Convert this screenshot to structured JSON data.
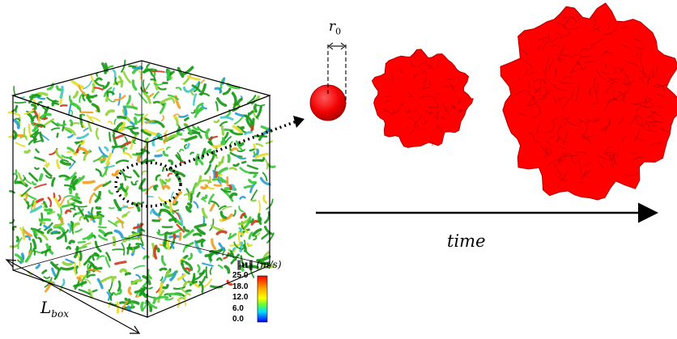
{
  "labels": {
    "r0_symbol": "r",
    "r0_subscript": "0",
    "time": "time",
    "lbox_symbol": "L",
    "lbox_subscript": "box",
    "colorbar_title_quantity": "‖u‖",
    "colorbar_title_unit": "(m/s)"
  },
  "colorbar": {
    "ticks": [
      "25.0",
      "18.0",
      "12.0",
      "6.0",
      "0.0"
    ],
    "colors": [
      "#ff0000",
      "#ffff00",
      "#00ff00",
      "#00ffff",
      "#0000ff"
    ]
  },
  "colors": {
    "flame_red": "#ff0000",
    "flame_dark": "#b00000",
    "box_edge": "#000000",
    "turbulence_palette": [
      "#1a9a1a",
      "#3cc83c",
      "#8fd43a",
      "#e6dc32",
      "#f0a028",
      "#d23c1e",
      "#2aa0d2",
      "#46c8c8"
    ]
  },
  "icons": {
    "zoom_pointer": "dotted-arrow-icon",
    "time_arrow": "arrow-right-icon",
    "lbox_arrow": "double-arrow-icon"
  }
}
